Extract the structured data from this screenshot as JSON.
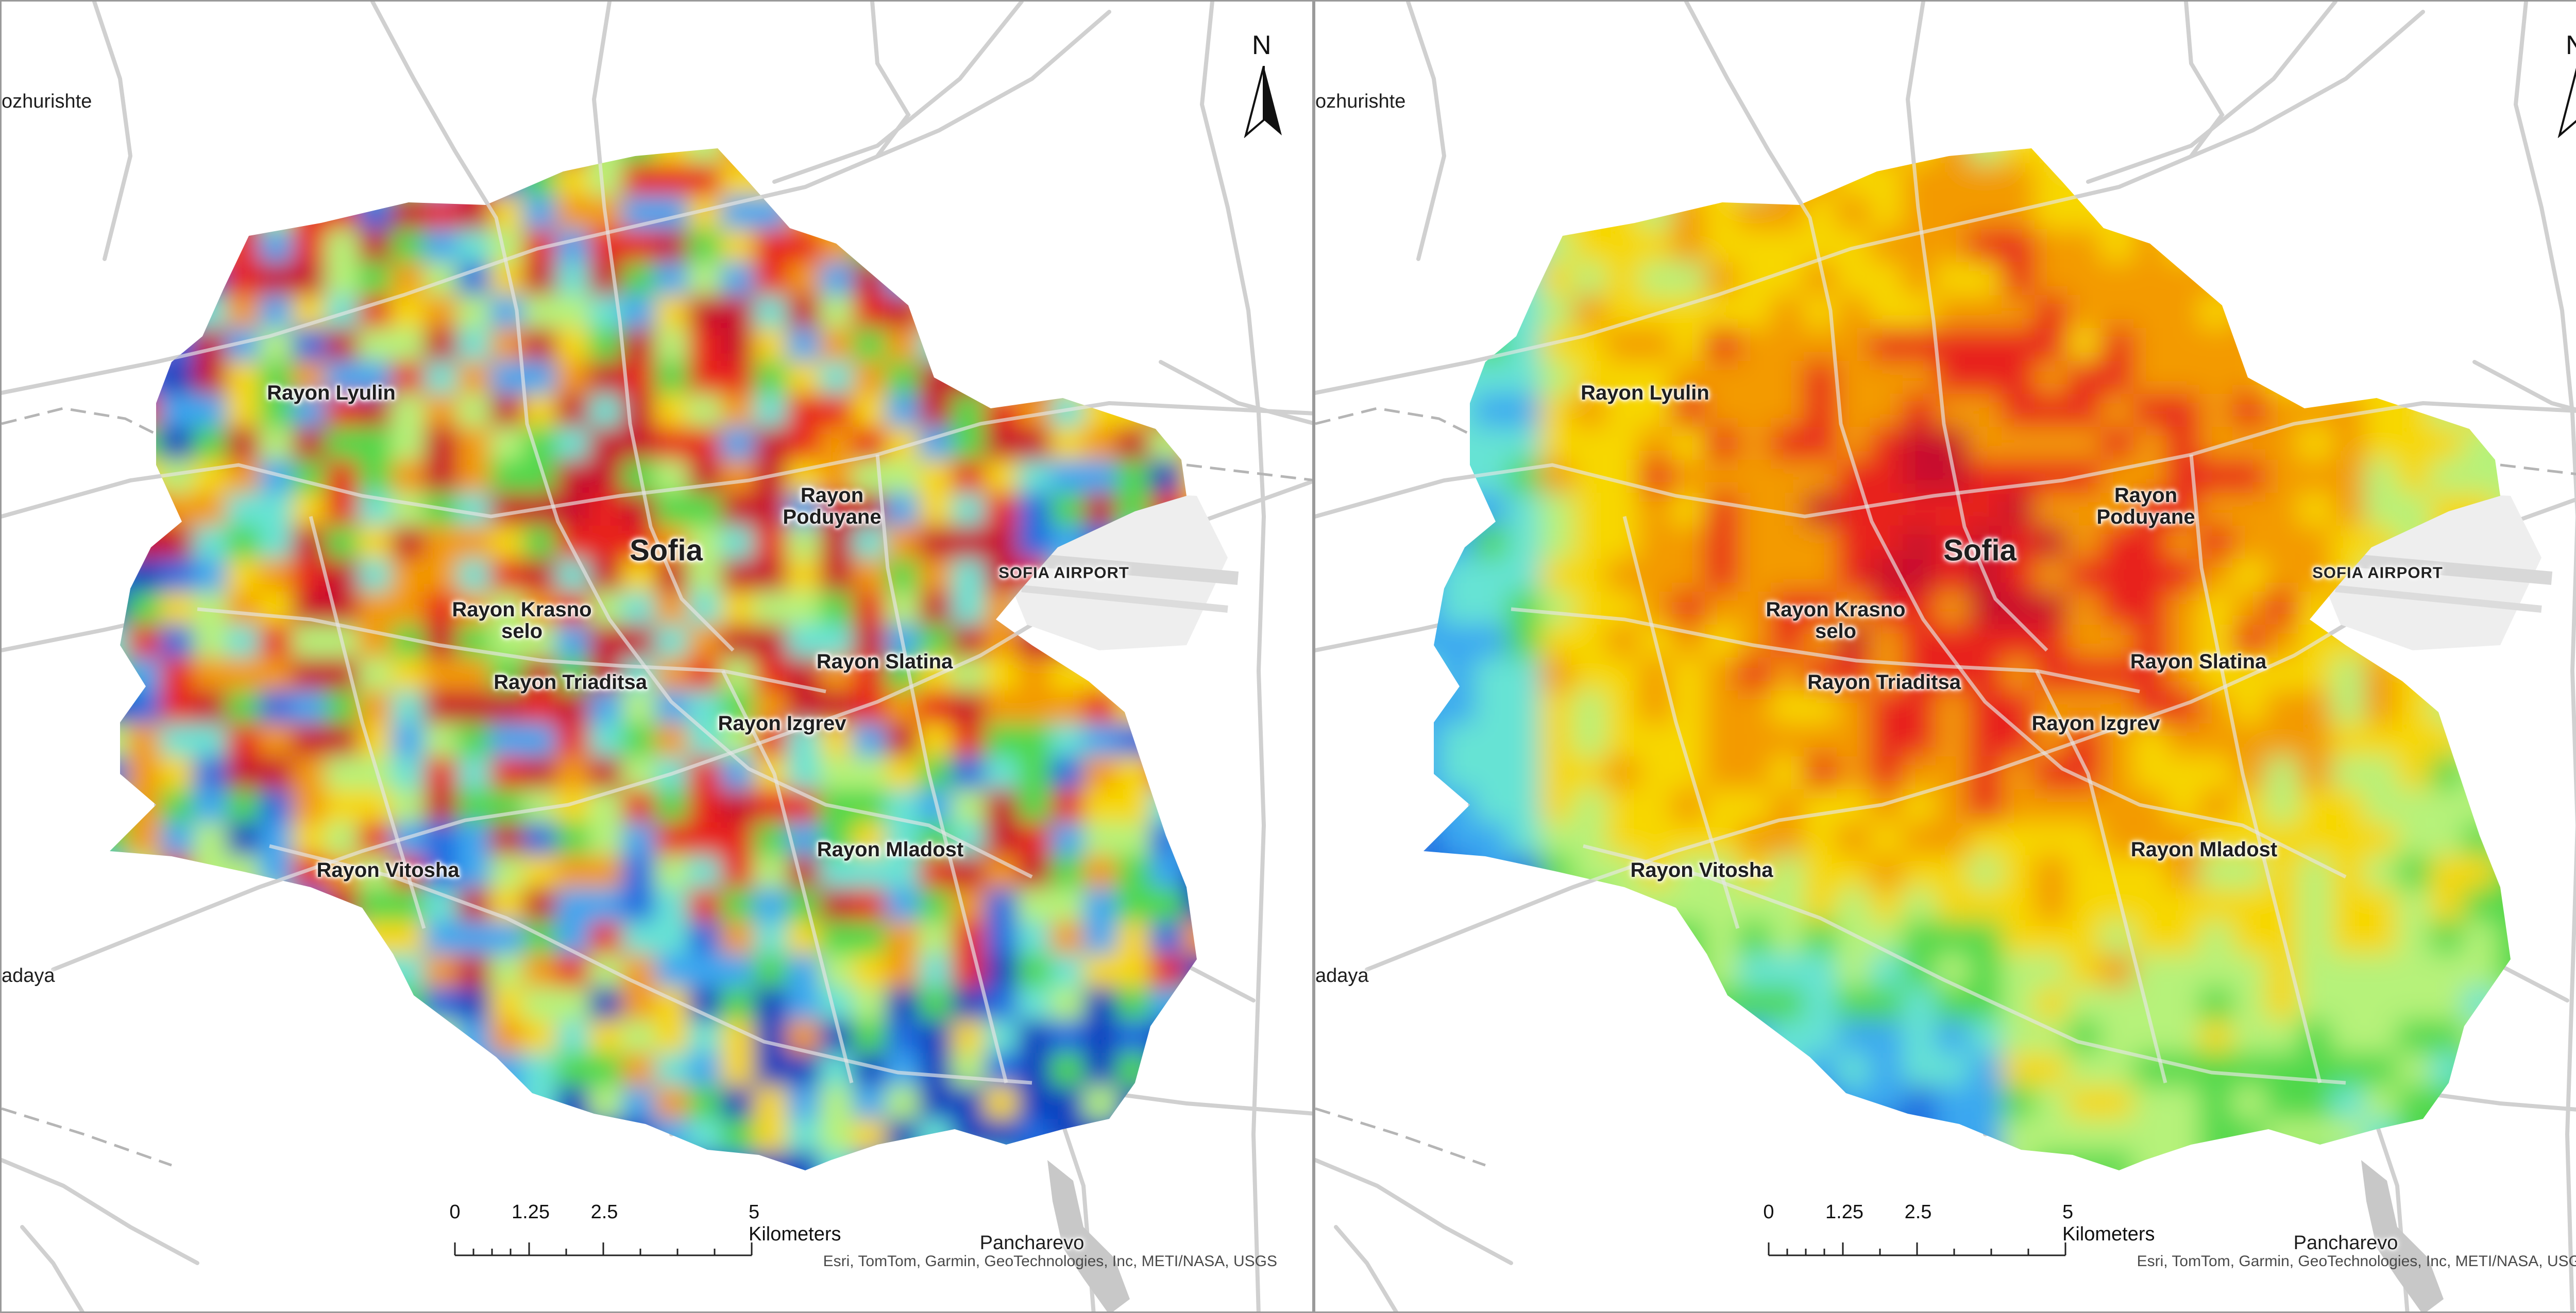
{
  "panels": [
    {
      "labels": {
        "edge_north": "ozhurishte",
        "edge_south": "adaya",
        "lyulin": "Rayon Lyulin",
        "poduyane": "Rayon\nPoduyane",
        "sofia": "Sofia",
        "airport": "SOFIA AIRPORT",
        "krasno_selo": "Rayon Krasno\nselo",
        "triaditsa": "Rayon Triaditsa",
        "slatina": "Rayon Slatina",
        "izgrev": "Rayon Izgrev",
        "mladost": "Rayon Mladost",
        "vitosha": "Rayon Vitosha",
        "pancharevo": "Pancharevo"
      },
      "north_arrow": "N",
      "scale": {
        "ticks": [
          "0",
          "1.25",
          "2.5",
          "5 Kilometers"
        ]
      },
      "attribution": "Esri, TomTom, Garmin, GeoTechnologies, Inc, METI/NASA, USGS",
      "surface": {
        "palette": [
          "#0b3fbf",
          "#1f6ce0",
          "#3aa7f0",
          "#66e3d4",
          "#4fd84c",
          "#b6f27a",
          "#f7d700",
          "#f39a00",
          "#e8201c",
          "#c8102e"
        ],
        "pattern": "mixed"
      }
    },
    {
      "labels": {
        "edge_north": "ozhurishte",
        "edge_south": "adaya",
        "lyulin": "Rayon Lyulin",
        "poduyane": "Rayon\nPoduyane",
        "sofia": "Sofia",
        "airport": "SOFIA AIRPORT",
        "krasno_selo": "Rayon Krasno\nselo",
        "triaditsa": "Rayon Triaditsa",
        "slatina": "Rayon Slatina",
        "izgrev": "Rayon Izgrev",
        "mladost": "Rayon Mladost",
        "vitosha": "Rayon Vitosha",
        "pancharevo": "Pancharevo"
      },
      "north_arrow": "N",
      "scale": {
        "ticks": [
          "0",
          "1.25",
          "2.5",
          "5 Kilometers"
        ]
      },
      "attribution": "Esri, TomTom, Garmin, GeoTechnologies, Inc, METI/NASA, USGS",
      "surface": {
        "palette": [
          "#0b3fbf",
          "#1f6ce0",
          "#3aa7f0",
          "#66e3d4",
          "#4fd84c",
          "#b6f27a",
          "#f7d700",
          "#f39a00",
          "#e8201c",
          "#c8102e"
        ],
        "pattern": "hot"
      }
    }
  ]
}
